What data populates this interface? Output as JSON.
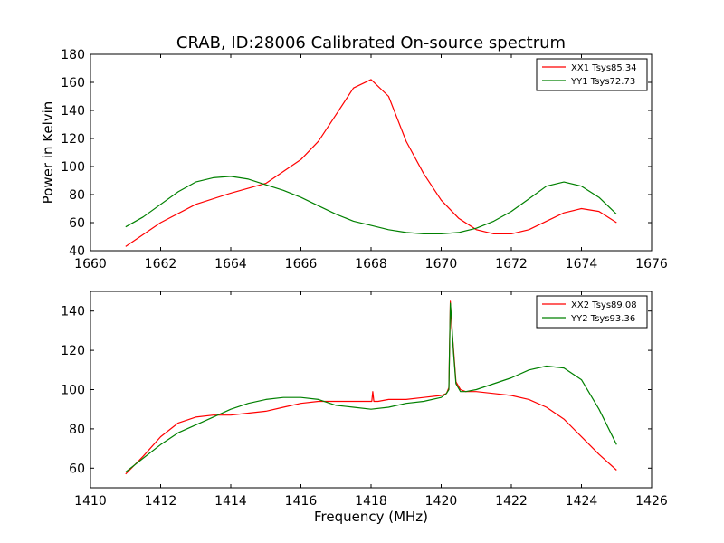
{
  "title": "CRAB, ID:28006 Calibrated On-source spectrum",
  "colors": {
    "red": "#ff0000",
    "green": "#008000",
    "axes": "#000000",
    "background": "#ffffff"
  },
  "chart_data": [
    {
      "type": "line",
      "title": "CRAB, ID:28006 Calibrated On-source spectrum",
      "xlabel": "",
      "ylabel": "Power in Kelvin",
      "xlim": [
        1660,
        1676
      ],
      "ylim": [
        40,
        180
      ],
      "xticks": [
        "1660",
        "1662",
        "1664",
        "1666",
        "1668",
        "1670",
        "1672",
        "1674",
        "1676"
      ],
      "yticks": [
        "40",
        "60",
        "80",
        "100",
        "120",
        "140",
        "160",
        "180"
      ],
      "grid": false,
      "legend_position": "top-right",
      "series": [
        {
          "name": "XX1 Tsys85.34",
          "color": "#ff0000",
          "x": [
            1661.0,
            1662.0,
            1663.0,
            1664.0,
            1665.0,
            1666.0,
            1666.5,
            1667.0,
            1667.5,
            1668.0,
            1668.5,
            1669.0,
            1669.5,
            1670.0,
            1670.5,
            1671.0,
            1671.5,
            1672.0,
            1672.5,
            1673.0,
            1673.5,
            1674.0,
            1674.5,
            1675.0
          ],
          "y": [
            43,
            60,
            73,
            81,
            88,
            105,
            118,
            137,
            156,
            162,
            150,
            118,
            95,
            76,
            63,
            55,
            52,
            52,
            55,
            61,
            67,
            70,
            68,
            60
          ]
        },
        {
          "name": "YY1 Tsys72.73",
          "color": "#008000",
          "x": [
            1661.0,
            1661.5,
            1662.0,
            1662.5,
            1663.0,
            1663.5,
            1664.0,
            1664.5,
            1665.0,
            1665.5,
            1666.0,
            1666.5,
            1667.0,
            1667.5,
            1668.0,
            1668.5,
            1669.0,
            1669.5,
            1670.0,
            1670.5,
            1671.0,
            1671.5,
            1672.0,
            1672.5,
            1673.0,
            1673.5,
            1674.0,
            1674.5,
            1675.0
          ],
          "y": [
            57,
            64,
            73,
            82,
            89,
            92,
            93,
            91,
            87,
            83,
            78,
            72,
            66,
            61,
            58,
            55,
            53,
            52,
            52,
            53,
            56,
            61,
            68,
            77,
            86,
            89,
            86,
            78,
            66
          ]
        }
      ]
    },
    {
      "type": "line",
      "title": "",
      "xlabel": "Frequency (MHz)",
      "ylabel": "",
      "xlim": [
        1410,
        1426
      ],
      "ylim": [
        50,
        150
      ],
      "xticks": [
        "1410",
        "1412",
        "1414",
        "1416",
        "1418",
        "1420",
        "1422",
        "1424",
        "1426"
      ],
      "yticks": [
        "60",
        "80",
        "100",
        "120",
        "140"
      ],
      "grid": false,
      "legend_position": "top-right",
      "series": [
        {
          "name": "XX2 Tsys89.08",
          "color": "#ff0000",
          "x": [
            1411.0,
            1411.5,
            1412.0,
            1412.5,
            1413.0,
            1413.5,
            1414.0,
            1414.5,
            1415.0,
            1415.5,
            1416.0,
            1416.5,
            1417.0,
            1417.5,
            1418.0,
            1418.02,
            1418.05,
            1418.08,
            1418.11,
            1418.2,
            1418.5,
            1419.0,
            1419.5,
            1420.0,
            1420.15,
            1420.22,
            1420.26,
            1420.3,
            1420.35,
            1420.42,
            1420.55,
            1420.7,
            1421.0,
            1421.5,
            1422.0,
            1422.5,
            1423.0,
            1423.5,
            1424.0,
            1424.5,
            1425.0
          ],
          "y": [
            57,
            66,
            76,
            83,
            86,
            87,
            87,
            88,
            89,
            91,
            93,
            94,
            94,
            94,
            94,
            94,
            99,
            94,
            94,
            94,
            95,
            95,
            96,
            97,
            98,
            101,
            145,
            132,
            121,
            104,
            100,
            99,
            99,
            98,
            97,
            95,
            91,
            85,
            76,
            67,
            59
          ]
        },
        {
          "name": "YY2 Tsys93.36",
          "color": "#008000",
          "x": [
            1411.0,
            1411.5,
            1412.0,
            1412.5,
            1413.0,
            1413.5,
            1414.0,
            1414.5,
            1415.0,
            1415.5,
            1416.0,
            1416.5,
            1417.0,
            1417.5,
            1418.0,
            1418.5,
            1419.0,
            1419.5,
            1420.0,
            1420.15,
            1420.22,
            1420.26,
            1420.3,
            1420.35,
            1420.42,
            1420.55,
            1420.7,
            1421.0,
            1421.5,
            1422.0,
            1422.5,
            1423.0,
            1423.5,
            1424.0,
            1424.5,
            1425.0
          ],
          "y": [
            58,
            65,
            72,
            78,
            82,
            86,
            90,
            93,
            95,
            96,
            96,
            95,
            92,
            91,
            90,
            91,
            93,
            94,
            96,
            98,
            100,
            144,
            135,
            119,
            103,
            99,
            99,
            100,
            103,
            106,
            110,
            112,
            111,
            105,
            90,
            72
          ]
        }
      ]
    }
  ]
}
